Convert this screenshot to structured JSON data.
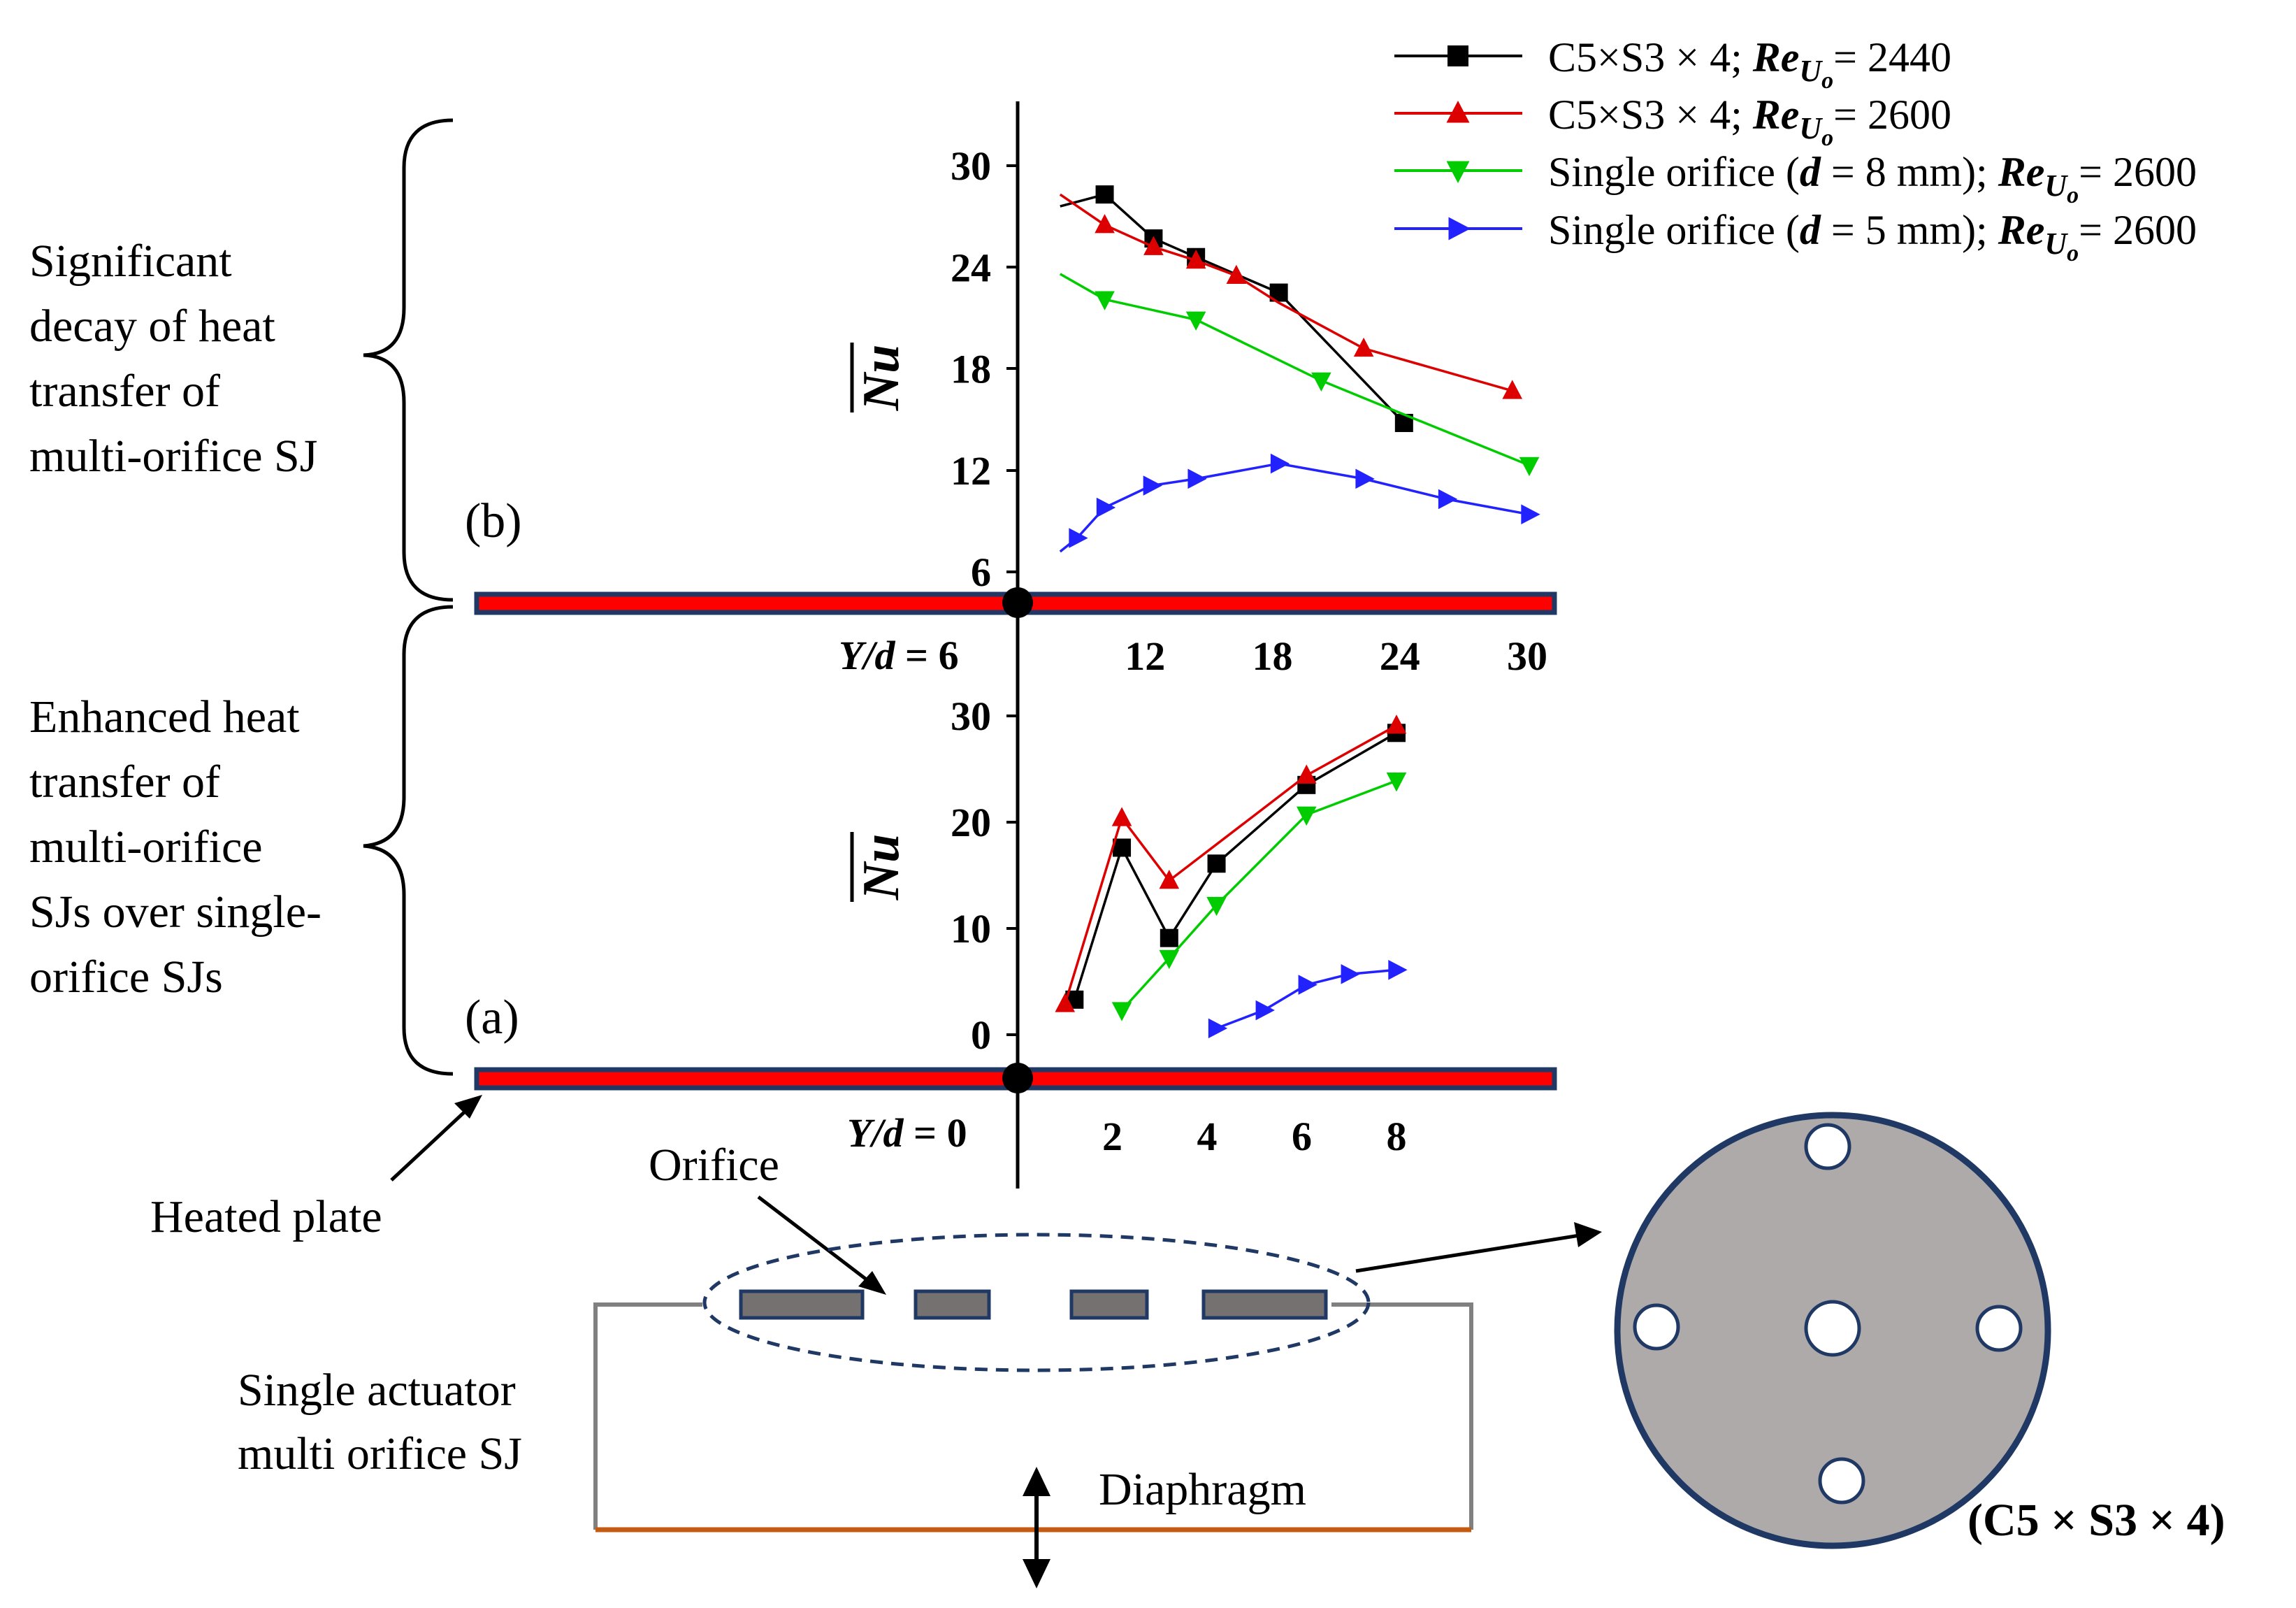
{
  "annotations": {
    "left_b": [
      "Significant",
      "decay of heat",
      "transfer of",
      "multi-orifice SJ"
    ],
    "left_a": [
      "Enhanced heat",
      "transfer of",
      "multi-orifice",
      "SJs over single-",
      "orifice SJs"
    ],
    "panel_b_label": "(b)",
    "panel_a_label": "(a)",
    "heated_plate": "Heated plate",
    "orifice": "Orifice",
    "single_actuator": [
      "Single actuator",
      "multi orifice SJ"
    ],
    "diaphragm": "Diaphragm",
    "config_label": "(C5 × S3 × 4)"
  },
  "axis_labels": {
    "ylabel": "Nu",
    "yd6_prefix": "Y/d",
    "yd6_value": " = 6",
    "yd0_prefix": "Y/d",
    "yd0_value": " = 0"
  },
  "legend": [
    {
      "pre": "C5×S3 × 4; ",
      "d": "",
      "mid": "",
      "re": "Re",
      "sub": "U",
      "subsub": "o",
      "val": "= 2440",
      "color": "#000000",
      "marker": "square"
    },
    {
      "pre": "C5×S3 × 4; ",
      "d": "",
      "mid": "",
      "re": "Re",
      "sub": "U",
      "subsub": "o",
      "val": "= 2600",
      "color": "#dd0000",
      "marker": "tri-up"
    },
    {
      "pre": "Single orifice (",
      "d": "d",
      "mid": " = 8 mm); ",
      "re": "Re",
      "sub": "U",
      "subsub": "o",
      "val": "= 2600",
      "color": "#00cc00",
      "marker": "tri-down"
    },
    {
      "pre": "Single orifice (",
      "d": "d",
      "mid": " = 5 mm); ",
      "re": "Re",
      "sub": "U",
      "subsub": "o",
      "val": "= 2600",
      "color": "#2222ff",
      "marker": "tri-right"
    }
  ],
  "chart_data": [
    {
      "type": "line",
      "panel": "b",
      "title": "",
      "xlabel": "Y/d = 6",
      "ylabel": "Nu (mean)",
      "xlim": [
        6,
        31
      ],
      "ylim": [
        4,
        35
      ],
      "xticks": [
        "12",
        "18",
        "24",
        "30"
      ],
      "xtick_values": [
        12,
        18,
        24,
        30
      ],
      "yticks": [
        "6",
        "12",
        "18",
        "24",
        "30"
      ],
      "ytick_values": [
        6,
        12,
        18,
        24,
        30
      ],
      "series": [
        {
          "name": "C5×S3 × 4; Re_Uo = 2440",
          "color": "#000000",
          "marker": "square",
          "x": [
            8,
            10.1,
            12.4,
            14.4,
            18.3,
            24.2
          ],
          "y": [
            27.6,
            28.3,
            25.7,
            24.6,
            22.5,
            14.8
          ],
          "markers": [
            false,
            true,
            true,
            true,
            true,
            true
          ]
        },
        {
          "name": "C5×S3 × 4; Re_Uo = 2600",
          "color": "#dd0000",
          "marker": "tri-up",
          "x": [
            8,
            10.1,
            12.4,
            14.4,
            16.3,
            18.3,
            22.3,
            29.3
          ],
          "y": [
            28.3,
            26.5,
            25.2,
            24.4,
            23.5,
            21.9,
            19.2,
            16.7
          ],
          "markers": [
            false,
            true,
            true,
            true,
            true,
            false,
            true,
            true
          ]
        },
        {
          "name": "Single orifice (d = 8 mm); Re_Uo = 2600",
          "color": "#00cc00",
          "marker": "tri-down",
          "x": [
            8,
            10.1,
            14.4,
            20.3,
            24.2,
            30.1
          ],
          "y": [
            23.6,
            22.1,
            20.9,
            17.3,
            15.3,
            12.3
          ],
          "markers": [
            false,
            true,
            true,
            true,
            false,
            true
          ]
        },
        {
          "name": "Single orifice (d = 5 mm); Re_Uo = 2600",
          "color": "#2222ff",
          "marker": "tri-right",
          "x": [
            8,
            8.8,
            10.1,
            12.3,
            14.4,
            18.3,
            22.3,
            26.2,
            30.1
          ],
          "y": [
            7.2,
            8.0,
            9.8,
            11.1,
            11.5,
            12.4,
            11.5,
            10.3,
            9.4
          ],
          "markers": [
            false,
            true,
            true,
            true,
            true,
            true,
            true,
            true,
            true
          ]
        }
      ]
    },
    {
      "type": "line",
      "panel": "a",
      "title": "",
      "xlabel": "Y/d = 0",
      "ylabel": "Nu (mean)",
      "xlim": [
        -0.2,
        10.3
      ],
      "ylim": [
        -0.5,
        32
      ],
      "xticks": [
        "2",
        "4",
        "6",
        "8"
      ],
      "xtick_values": [
        2,
        4,
        6,
        8
      ],
      "yticks": [
        "0",
        "10",
        "20",
        "30"
      ],
      "ytick_values": [
        0,
        10,
        20,
        30
      ],
      "series": [
        {
          "name": "C5×S3 × 4; Re_Uo = 2440",
          "color": "#000000",
          "marker": "square",
          "x": [
            1.2,
            2.2,
            3.2,
            4.2,
            6.1,
            8.0
          ],
          "y": [
            3.3,
            17.6,
            9.1,
            16.1,
            23.5,
            28.4
          ],
          "markers": [
            true,
            true,
            true,
            true,
            true,
            true
          ]
        },
        {
          "name": "C5×S3 × 4; Re_Uo = 2600",
          "color": "#dd0000",
          "marker": "tri-up",
          "x": [
            1.0,
            2.2,
            3.2,
            6.1,
            8.0
          ],
          "y": [
            2.9,
            20.4,
            14.5,
            24.4,
            29.1
          ],
          "markers": [
            true,
            true,
            true,
            true,
            true
          ]
        },
        {
          "name": "Single orifice (d = 8 mm); Re_Uo = 2600",
          "color": "#00cc00",
          "marker": "tri-down",
          "x": [
            2.2,
            3.2,
            4.2,
            6.1,
            8.0
          ],
          "y": [
            2.3,
            7.2,
            12.2,
            20.7,
            23.9
          ],
          "markers": [
            true,
            true,
            true,
            true,
            true
          ]
        },
        {
          "name": "Single orifice (d = 5 mm); Re_Uo = 2600",
          "color": "#2222ff",
          "marker": "tri-right",
          "x": [
            4.2,
            5.2,
            6.1,
            7.0,
            8.0
          ],
          "y": [
            0.6,
            2.3,
            4.7,
            5.7,
            6.1
          ],
          "markers": [
            true,
            true,
            true,
            true,
            true
          ]
        }
      ]
    }
  ]
}
